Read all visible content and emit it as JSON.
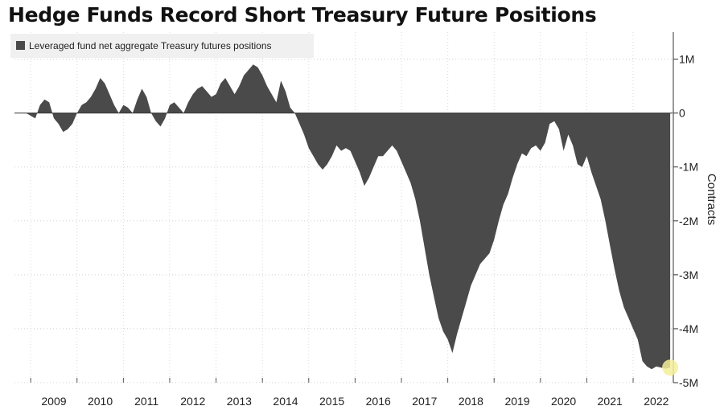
{
  "chart_data": {
    "type": "area",
    "title": "Hedge Funds Record Short Treasury Future Positions",
    "ylabel": "Contracts",
    "xlabel": "",
    "ylim": [
      -5000000,
      1500000
    ],
    "xlim": [
      2008.65,
      2022.85
    ],
    "y_ticks": [
      1000000,
      0,
      -1000000,
      -2000000,
      -3000000,
      -4000000,
      -5000000
    ],
    "y_tick_labels": [
      "1M",
      "0",
      "-1M",
      "-2M",
      "-3M",
      "-4M",
      "-5M"
    ],
    "x_ticks": [
      2009,
      2010,
      2011,
      2012,
      2013,
      2014,
      2015,
      2016,
      2017,
      2018,
      2019,
      2020,
      2021,
      2022
    ],
    "x_tick_labels": [
      "2009",
      "2010",
      "2011",
      "2012",
      "2013",
      "2014",
      "2015",
      "2016",
      "2017",
      "2018",
      "2019",
      "2020",
      "2021",
      "2022"
    ],
    "grid": "horizontal dotted",
    "legend": "top-left",
    "series": [
      {
        "name": "Leveraged fund net aggregate Treasury futures positions",
        "color": "#4a4a4a",
        "x": [
          2008.65,
          2008.9,
          2009.0,
          2009.1,
          2009.2,
          2009.3,
          2009.4,
          2009.5,
          2009.6,
          2009.7,
          2009.8,
          2009.9,
          2010.0,
          2010.1,
          2010.2,
          2010.3,
          2010.4,
          2010.5,
          2010.6,
          2010.7,
          2010.8,
          2010.9,
          2011.0,
          2011.1,
          2011.2,
          2011.3,
          2011.4,
          2011.5,
          2011.6,
          2011.7,
          2011.8,
          2011.9,
          2012.0,
          2012.1,
          2012.2,
          2012.3,
          2012.4,
          2012.5,
          2012.6,
          2012.7,
          2012.8,
          2012.9,
          2013.0,
          2013.1,
          2013.2,
          2013.3,
          2013.4,
          2013.5,
          2013.6,
          2013.7,
          2013.8,
          2013.9,
          2014.0,
          2014.1,
          2014.2,
          2014.3,
          2014.4,
          2014.5,
          2014.6,
          2014.7,
          2014.8,
          2014.9,
          2015.0,
          2015.1,
          2015.2,
          2015.3,
          2015.4,
          2015.5,
          2015.6,
          2015.7,
          2015.8,
          2015.9,
          2016.0,
          2016.1,
          2016.2,
          2016.3,
          2016.4,
          2016.5,
          2016.6,
          2016.7,
          2016.8,
          2016.9,
          2017.0,
          2017.1,
          2017.2,
          2017.3,
          2017.4,
          2017.5,
          2017.6,
          2017.7,
          2017.8,
          2017.9,
          2018.0,
          2018.1,
          2018.2,
          2018.3,
          2018.4,
          2018.5,
          2018.6,
          2018.7,
          2018.8,
          2018.9,
          2019.0,
          2019.1,
          2019.2,
          2019.3,
          2019.4,
          2019.5,
          2019.6,
          2019.7,
          2019.8,
          2019.9,
          2020.0,
          2020.1,
          2020.2,
          2020.3,
          2020.4,
          2020.5,
          2020.6,
          2020.7,
          2020.8,
          2020.9,
          2021.0,
          2021.1,
          2021.2,
          2021.3,
          2021.4,
          2021.5,
          2021.6,
          2021.7,
          2021.8,
          2021.9,
          2022.0,
          2022.1,
          2022.2,
          2022.3,
          2022.4,
          2022.5,
          2022.6,
          2022.7,
          2022.8
        ],
        "values": [
          0,
          0,
          -50000,
          -100000,
          150000,
          250000,
          200000,
          -100000,
          -200000,
          -350000,
          -300000,
          -200000,
          0,
          150000,
          200000,
          300000,
          450000,
          650000,
          550000,
          350000,
          150000,
          0,
          150000,
          100000,
          0,
          250000,
          450000,
          300000,
          0,
          -150000,
          -250000,
          -100000,
          150000,
          200000,
          100000,
          0,
          200000,
          350000,
          450000,
          500000,
          400000,
          300000,
          350000,
          550000,
          650000,
          500000,
          350000,
          500000,
          700000,
          800000,
          900000,
          850000,
          700000,
          500000,
          350000,
          200000,
          600000,
          400000,
          100000,
          0,
          -200000,
          -400000,
          -650000,
          -800000,
          -950000,
          -1050000,
          -950000,
          -800000,
          -600000,
          -700000,
          -650000,
          -700000,
          -900000,
          -1100000,
          -1350000,
          -1200000,
          -1000000,
          -800000,
          -800000,
          -700000,
          -600000,
          -700000,
          -900000,
          -1100000,
          -1300000,
          -1600000,
          -2000000,
          -2500000,
          -3000000,
          -3400000,
          -3800000,
          -4050000,
          -4200000,
          -4450000,
          -4100000,
          -3800000,
          -3500000,
          -3200000,
          -3000000,
          -2800000,
          -2700000,
          -2600000,
          -2350000,
          -2000000,
          -1700000,
          -1500000,
          -1200000,
          -950000,
          -750000,
          -800000,
          -650000,
          -600000,
          -700000,
          -550000,
          -200000,
          -150000,
          -300000,
          -700000,
          -400000,
          -600000,
          -950000,
          -1000000,
          -800000,
          -1100000,
          -1350000,
          -1600000,
          -2000000,
          -2450000,
          -2900000,
          -3300000,
          -3600000,
          -3800000,
          -4000000,
          -4200000,
          -4600000,
          -4700000,
          -4750000,
          -4700000,
          -4720000,
          -4740000,
          -4720000
        ]
      }
    ],
    "highlight": {
      "x": 2022.8,
      "value": -4720000,
      "color": "#f4ee9a"
    }
  }
}
